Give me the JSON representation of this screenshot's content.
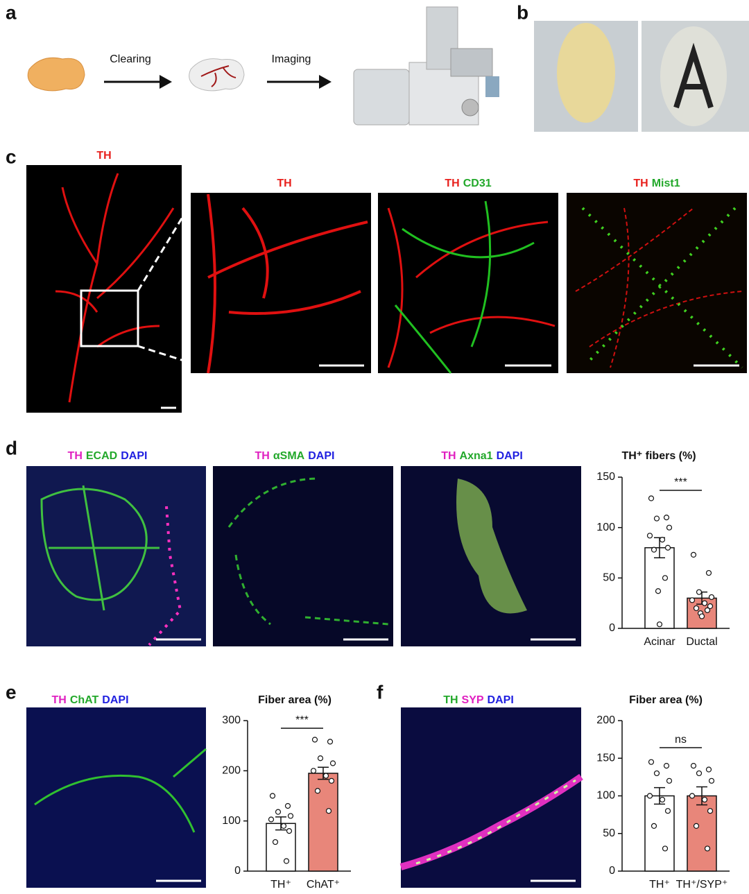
{
  "panel_letters": [
    "a",
    "b",
    "c",
    "d",
    "e",
    "f"
  ],
  "panel_a": {
    "steps": [
      "Clearing",
      "Imaging"
    ]
  },
  "panel_c": {
    "labels": [
      [
        {
          "text": "TH",
          "color": "#e8201c"
        }
      ],
      [
        {
          "text": "TH",
          "color": "#e8201c"
        }
      ],
      [
        {
          "text": "TH",
          "color": "#e8201c"
        },
        {
          "text": "CD31",
          "color": "#22a82a"
        }
      ],
      [
        {
          "text": "TH",
          "color": "#e8201c"
        },
        {
          "text": "Mist1",
          "color": "#22a82a"
        }
      ]
    ]
  },
  "panel_d": {
    "labels": [
      [
        {
          "text": "TH",
          "color": "#e020c0"
        },
        {
          "text": "ECAD",
          "color": "#22a82a"
        },
        {
          "text": "DAPI",
          "color": "#2020e0"
        }
      ],
      [
        {
          "text": "TH",
          "color": "#e020c0"
        },
        {
          "text": "αSMA",
          "color": "#22a82a"
        },
        {
          "text": "DAPI",
          "color": "#2020e0"
        }
      ],
      [
        {
          "text": "TH",
          "color": "#e020c0"
        },
        {
          "text": "Axna1",
          "color": "#22a82a"
        },
        {
          "text": "DAPI",
          "color": "#2020e0"
        }
      ]
    ]
  },
  "panel_e": {
    "labels": [
      [
        {
          "text": "TH",
          "color": "#e020c0"
        },
        {
          "text": "ChAT",
          "color": "#22a82a"
        },
        {
          "text": "DAPI",
          "color": "#2020e0"
        }
      ]
    ]
  },
  "panel_f": {
    "labels": [
      [
        {
          "text": "TH",
          "color": "#22a82a"
        },
        {
          "text": "SYP",
          "color": "#e020c0"
        },
        {
          "text": "DAPI",
          "color": "#2020e0"
        }
      ]
    ]
  },
  "chart_data": [
    {
      "type": "bar",
      "title": "TH⁺ fibers (%)",
      "categories": [
        "Acinar",
        "Ductal"
      ],
      "values": [
        80,
        30
      ],
      "errors": [
        10,
        6
      ],
      "points": [
        [
          129,
          110,
          109,
          100,
          92,
          88,
          80,
          78,
          50,
          37,
          4
        ],
        [
          73,
          55,
          36,
          31,
          28,
          25,
          22,
          20,
          18,
          15,
          12
        ]
      ],
      "colors": [
        "#ffffff",
        "#e8867a"
      ],
      "ylim": [
        0,
        150
      ],
      "yticks": [
        0,
        50,
        100,
        150
      ],
      "significance": "***"
    },
    {
      "type": "bar",
      "title": "Fiber area (%)",
      "categories": [
        "TH⁺",
        "ChAT⁺"
      ],
      "values": [
        95,
        195
      ],
      "errors": [
        13,
        12
      ],
      "points": [
        [
          150,
          130,
          118,
          110,
          103,
          90,
          80,
          58,
          20
        ],
        [
          262,
          258,
          225,
          215,
          200,
          190,
          180,
          160,
          120
        ]
      ],
      "colors": [
        "#ffffff",
        "#e8867a"
      ],
      "ylim": [
        0,
        300
      ],
      "yticks": [
        0,
        100,
        200,
        300
      ],
      "significance": "***"
    },
    {
      "type": "bar",
      "title": "Fiber area (%)",
      "categories": [
        "TH⁺",
        "TH⁺/SYP⁺"
      ],
      "values": [
        100,
        100
      ],
      "errors": [
        11,
        12
      ],
      "points": [
        [
          145,
          140,
          130,
          120,
          100,
          95,
          80,
          60,
          30
        ],
        [
          140,
          135,
          130,
          120,
          100,
          95,
          80,
          60,
          30
        ]
      ],
      "colors": [
        "#ffffff",
        "#e8867a"
      ],
      "ylim": [
        0,
        200
      ],
      "yticks": [
        0,
        50,
        100,
        150,
        200
      ],
      "significance": "ns"
    }
  ]
}
